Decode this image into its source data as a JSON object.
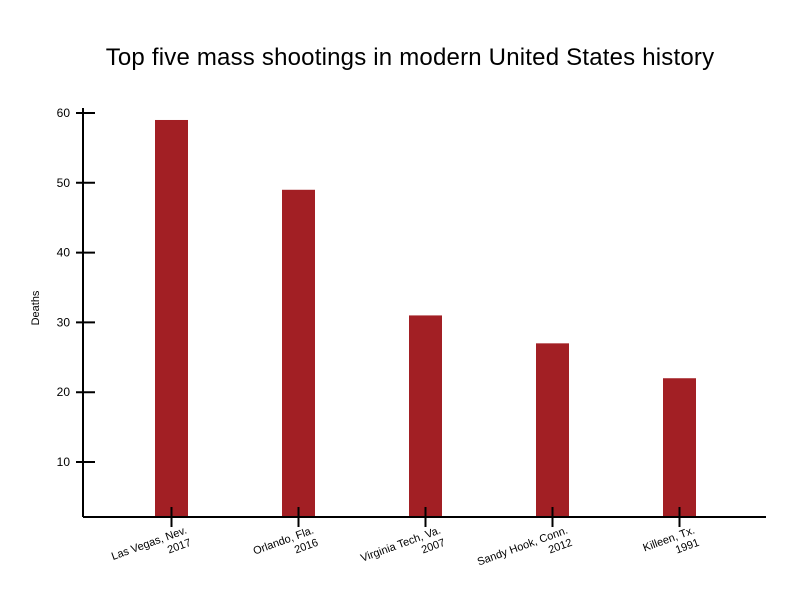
{
  "chart_data": {
    "type": "bar",
    "title": "Top five mass shootings in modern United States history",
    "xlabel": "",
    "ylabel": "Deaths",
    "ylim": [
      2,
      62
    ],
    "yticks": [
      10,
      20,
      30,
      40,
      50,
      60
    ],
    "categories": [
      [
        "Las Vegas, Nev.",
        "2017"
      ],
      [
        "Orlando, Fla.",
        "2016"
      ],
      [
        "Virginia Tech, Va.",
        "2007"
      ],
      [
        "Sandy Hook, Conn.",
        "2012"
      ],
      [
        "Killeen, Tx.",
        "1991"
      ]
    ],
    "values": [
      59,
      49,
      31,
      27,
      22
    ],
    "bar_color": "#a21f24",
    "grid": false,
    "legend": "none"
  }
}
